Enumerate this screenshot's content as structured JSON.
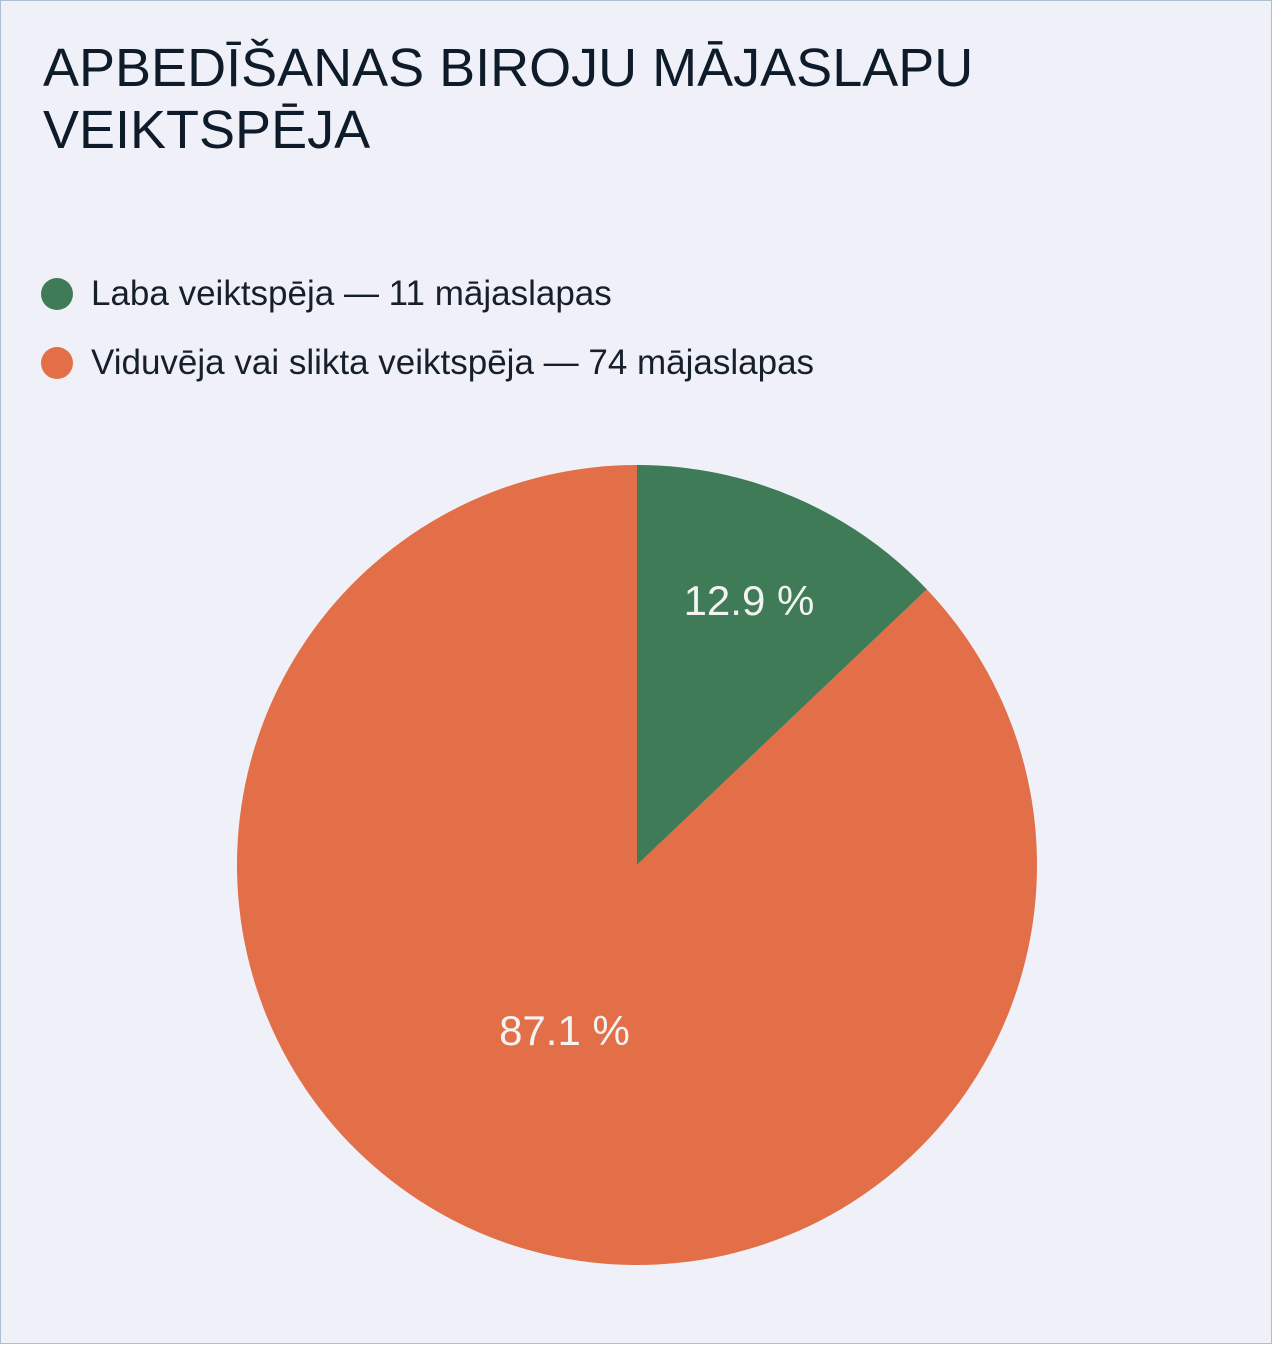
{
  "chart_data": {
    "type": "pie",
    "title": "APBEDĪŠANAS BIROJU MĀJASLAPU VEIKTSPĒJA",
    "categories": [
      "Laba veiktspēja — 11 mājaslapas",
      "Viduvēja vai slikta veiktspēja — 74 mājaslapas"
    ],
    "values": [
      12.9,
      87.1
    ],
    "value_labels": [
      "12.9 %",
      "87.1 %"
    ],
    "colors": [
      "#3e7b56",
      "#e26f47"
    ]
  }
}
